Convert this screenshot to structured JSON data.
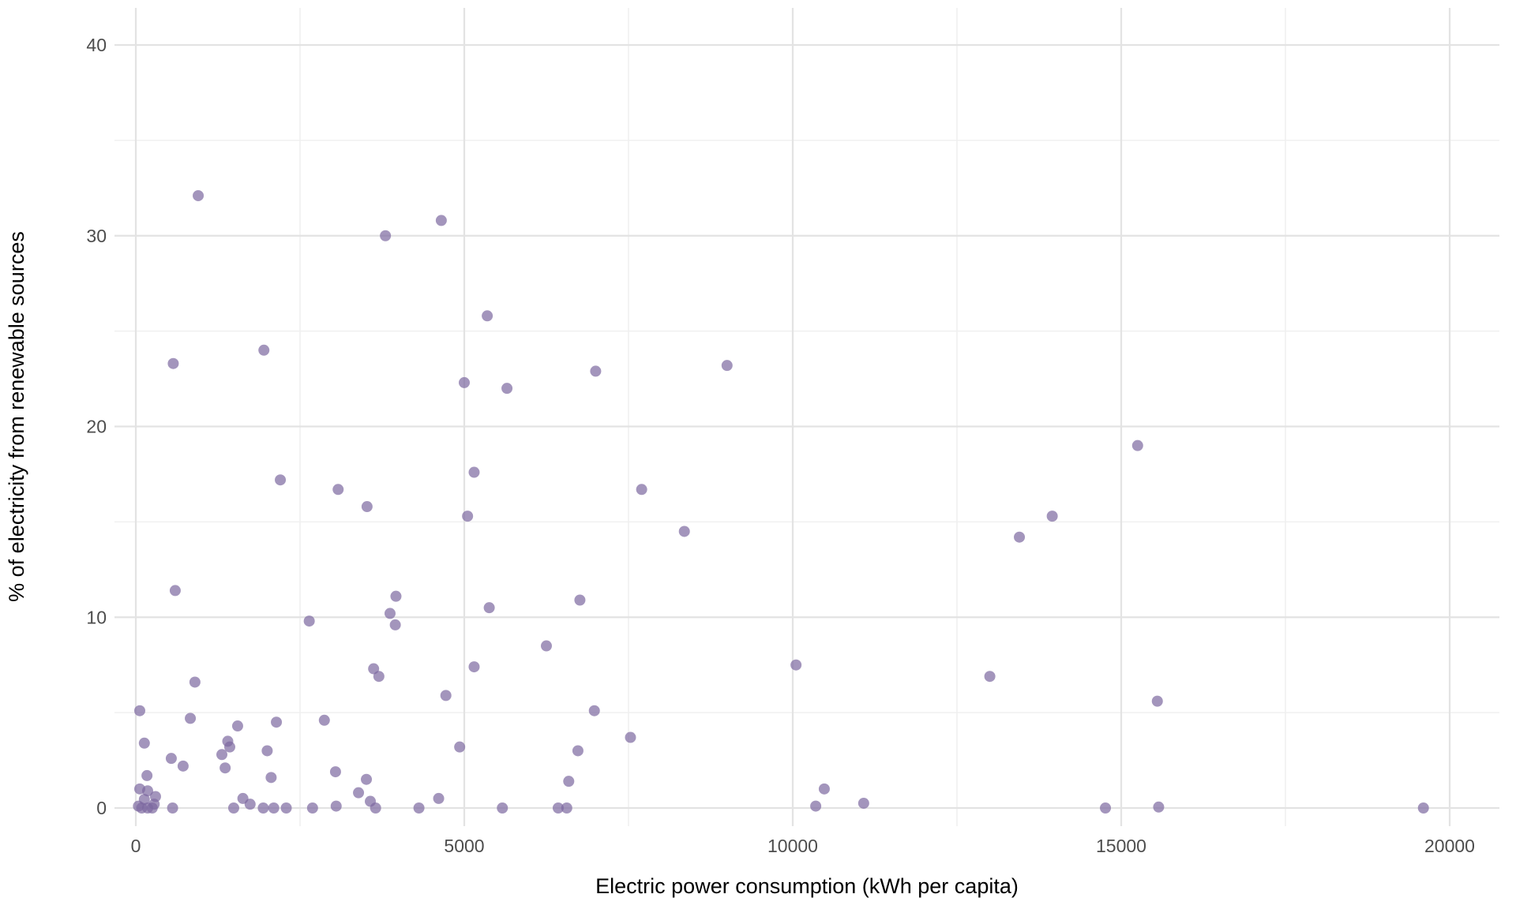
{
  "chart_data": {
    "type": "scatter",
    "title": "",
    "xlabel": "Electric power consumption (kWh per capita)",
    "ylabel": "% of electricity from renewable sources",
    "xlim": [
      0,
      20000
    ],
    "ylim": [
      0,
      40
    ],
    "x_ticks": [
      "0",
      "5000",
      "10000",
      "15000",
      "20000"
    ],
    "x_tick_values": [
      0,
      5000,
      10000,
      15000,
      20000
    ],
    "y_ticks": [
      "0",
      "10",
      "20",
      "30",
      "40"
    ],
    "y_tick_values": [
      0,
      10,
      20,
      30,
      40
    ],
    "x_minor_tick_values": [
      2500,
      7500,
      12500,
      17500
    ],
    "y_minor_tick_values": [
      5,
      15,
      25,
      35
    ],
    "grid": "on",
    "legend": "none",
    "point_color": "#7c68a0",
    "point_opacity": 0.7,
    "point_radius": 7,
    "background_color": "#ffffff",
    "points": [
      [
        950,
        32.1
      ],
      [
        4650,
        30.8
      ],
      [
        3800,
        30.0
      ],
      [
        5350,
        25.8
      ],
      [
        1950,
        24.0
      ],
      [
        570,
        23.3
      ],
      [
        9000,
        23.2
      ],
      [
        7000,
        22.9
      ],
      [
        5000,
        22.3
      ],
      [
        5650,
        22.0
      ],
      [
        15250,
        19.0
      ],
      [
        5150,
        17.6
      ],
      [
        2200,
        17.2
      ],
      [
        3080,
        16.7
      ],
      [
        7700,
        16.7
      ],
      [
        3520,
        15.8
      ],
      [
        13950,
        15.3
      ],
      [
        5050,
        15.3
      ],
      [
        8350,
        14.5
      ],
      [
        13450,
        14.2
      ],
      [
        600,
        11.4
      ],
      [
        3960,
        11.1
      ],
      [
        6760,
        10.9
      ],
      [
        5380,
        10.5
      ],
      [
        3870,
        10.2
      ],
      [
        2640,
        9.8
      ],
      [
        3950,
        9.6
      ],
      [
        6250,
        8.5
      ],
      [
        10050,
        7.5
      ],
      [
        5150,
        7.4
      ],
      [
        3620,
        7.3
      ],
      [
        3700,
        6.9
      ],
      [
        13000,
        6.9
      ],
      [
        900,
        6.6
      ],
      [
        4720,
        5.9
      ],
      [
        15550,
        5.6
      ],
      [
        60,
        5.1
      ],
      [
        6980,
        5.1
      ],
      [
        830,
        4.7
      ],
      [
        2870,
        4.6
      ],
      [
        2140,
        4.5
      ],
      [
        1550,
        4.3
      ],
      [
        7530,
        3.7
      ],
      [
        1400,
        3.5
      ],
      [
        130,
        3.4
      ],
      [
        1430,
        3.2
      ],
      [
        4930,
        3.2
      ],
      [
        2000,
        3.0
      ],
      [
        6730,
        3.0
      ],
      [
        1310,
        2.8
      ],
      [
        540,
        2.6
      ],
      [
        720,
        2.2
      ],
      [
        1360,
        2.1
      ],
      [
        3040,
        1.9
      ],
      [
        170,
        1.7
      ],
      [
        2060,
        1.6
      ],
      [
        3510,
        1.5
      ],
      [
        6590,
        1.4
      ],
      [
        60,
        1.0
      ],
      [
        10480,
        1.0
      ],
      [
        180,
        0.9
      ],
      [
        3390,
        0.8
      ],
      [
        300,
        0.6
      ],
      [
        1630,
        0.5
      ],
      [
        4610,
        0.5
      ],
      [
        130,
        0.45
      ],
      [
        3570,
        0.35
      ],
      [
        11080,
        0.25
      ],
      [
        1740,
        0.2
      ],
      [
        280,
        0.2
      ],
      [
        40,
        0.1
      ],
      [
        10350,
        0.1
      ],
      [
        3050,
        0.1
      ],
      [
        15570,
        0.05
      ],
      [
        90,
        0.0
      ],
      [
        180,
        0.0
      ],
      [
        250,
        0.0
      ],
      [
        560,
        0.0
      ],
      [
        1490,
        0.0
      ],
      [
        1940,
        0.0
      ],
      [
        2100,
        0.0
      ],
      [
        2290,
        0.0
      ],
      [
        2690,
        0.0
      ],
      [
        3650,
        0.0
      ],
      [
        4310,
        0.0
      ],
      [
        5580,
        0.0
      ],
      [
        6430,
        0.0
      ],
      [
        6560,
        0.0
      ],
      [
        14760,
        0.0
      ],
      [
        19600,
        0.0
      ]
    ]
  }
}
